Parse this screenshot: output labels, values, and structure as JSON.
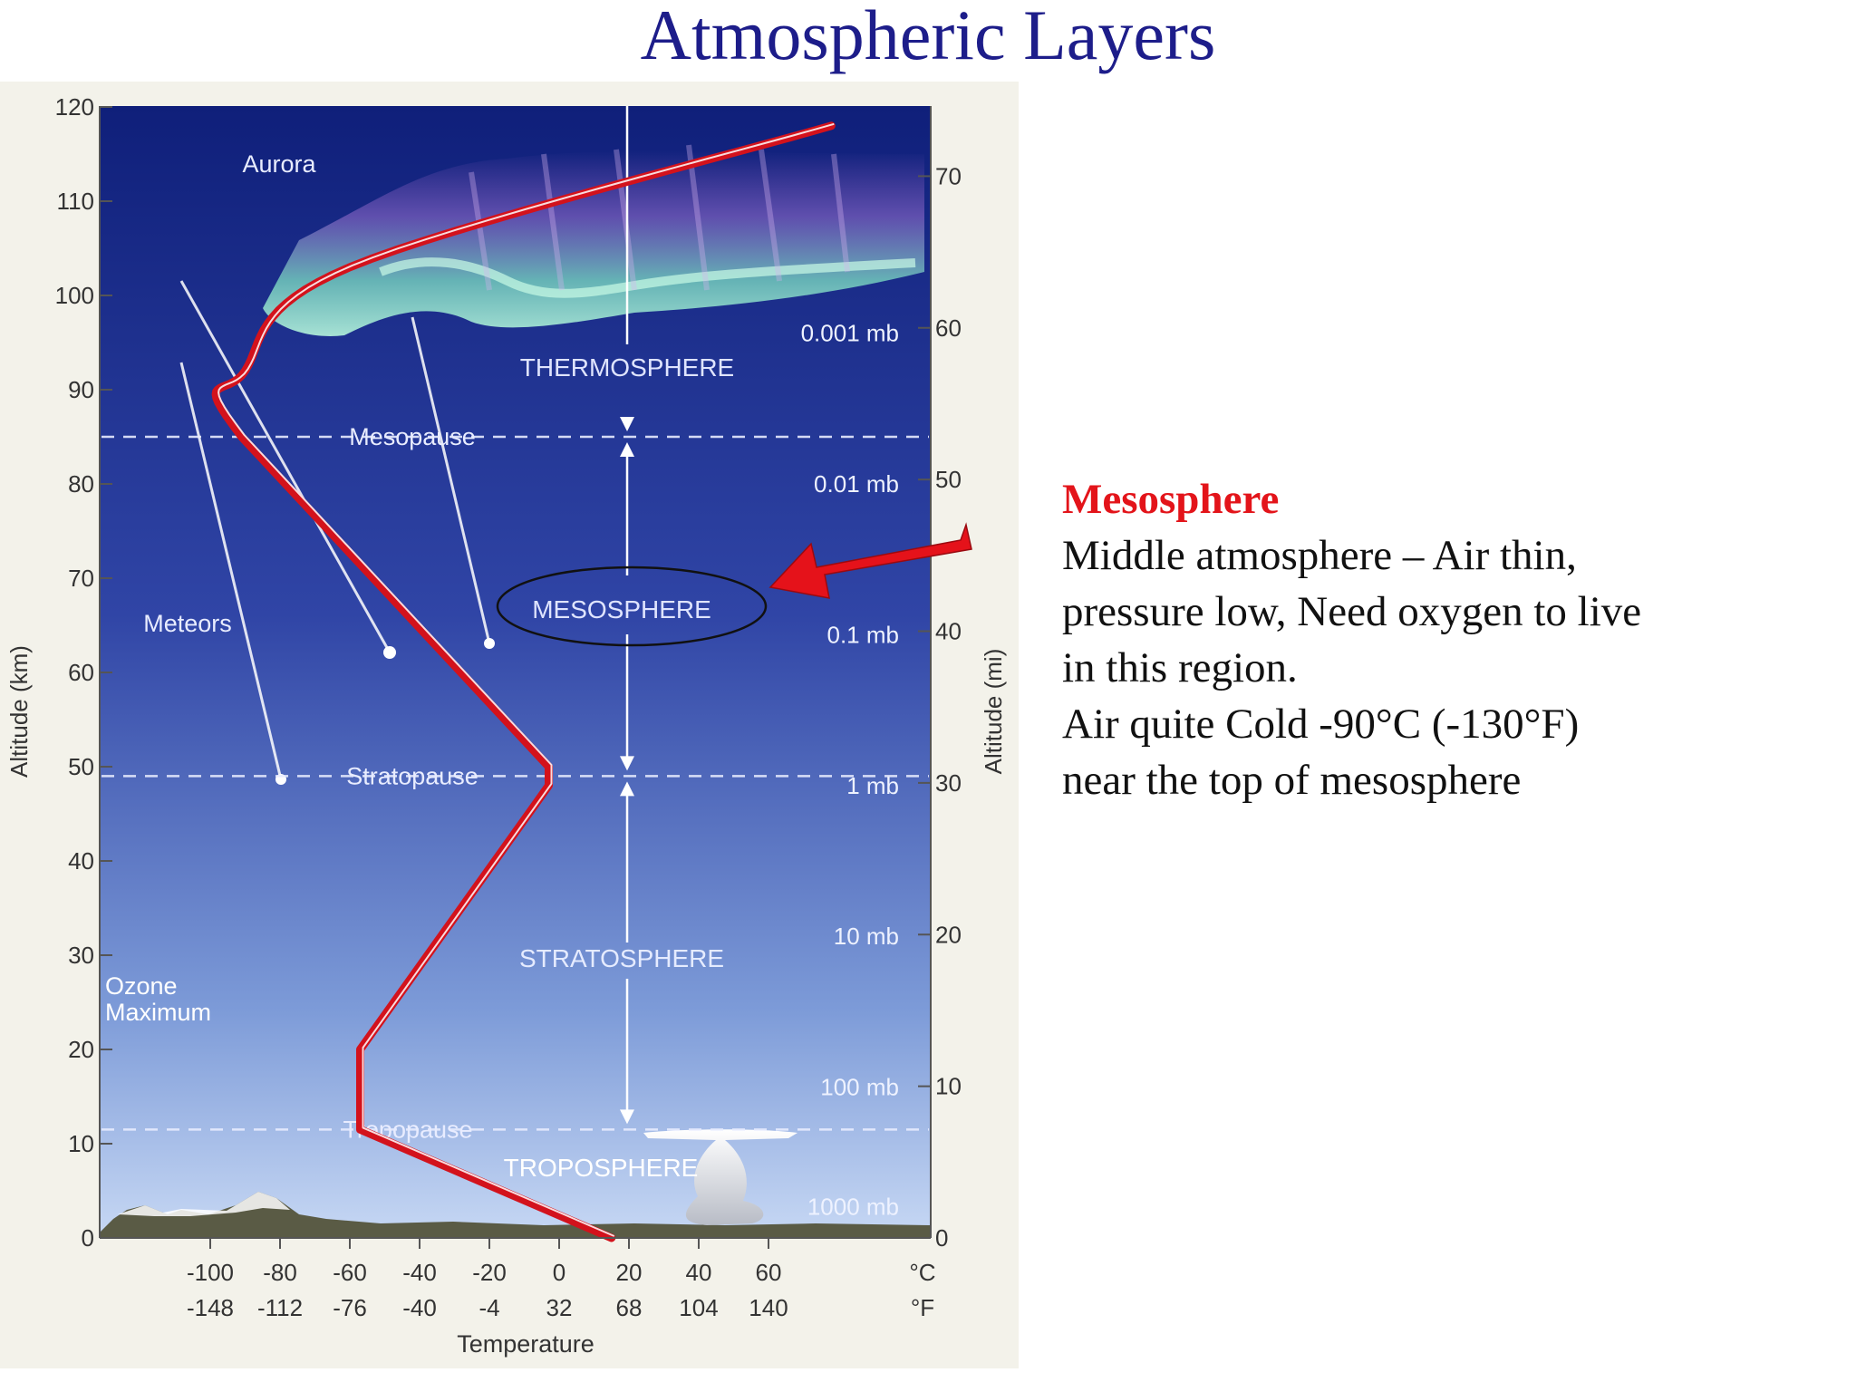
{
  "title": "Atmospheric Layers",
  "colors": {
    "title": "#1d1d8a",
    "temperature_curve": "#d3121c",
    "sky_top": "#0f1f7a",
    "sky_bottom": "#c7d8f4",
    "highlight_arrow": "#e5121a",
    "heading_text": "#e3141a"
  },
  "figure": {
    "y_axis_left": {
      "label": "Altitude (km)",
      "range": [
        0,
        120
      ],
      "ticks": [
        "0",
        "10",
        "20",
        "30",
        "40",
        "50",
        "60",
        "70",
        "80",
        "90",
        "100",
        "110",
        "120"
      ]
    },
    "y_axis_right": {
      "label": "Altitude (mi)",
      "ticks": [
        "0",
        "10",
        "20",
        "30",
        "40",
        "50",
        "60",
        "70"
      ]
    },
    "x_axis": {
      "label": "Temperature",
      "celsius_ticks": [
        "-100",
        "-80",
        "-60",
        "-40",
        "-20",
        "0",
        "20",
        "40",
        "60"
      ],
      "fahrenheit_ticks": [
        "-148",
        "-112",
        "-76",
        "-40",
        "-4",
        "32",
        "68",
        "104",
        "140"
      ],
      "celsius_unit": "°C",
      "fahrenheit_unit": "°F",
      "range_c": [
        -100,
        80
      ]
    },
    "pressure_labels": [
      {
        "text": "1000 mb",
        "km": 3.3
      },
      {
        "text": "100 mb",
        "km": 16
      },
      {
        "text": "10 mb",
        "km": 32
      },
      {
        "text": "1 mb",
        "km": 48
      },
      {
        "text": "0.1 mb",
        "km": 64
      },
      {
        "text": "0.01 mb",
        "km": 80
      },
      {
        "text": "0.001 mb",
        "km": 96
      }
    ],
    "layers": {
      "thermosphere": "THERMOSPHERE",
      "mesosphere": "MESOSPHERE",
      "stratosphere": "STRATOSPHERE",
      "troposphere": "TROPOSPHERE"
    },
    "boundaries": [
      {
        "name": "Mesopause",
        "km": 85
      },
      {
        "name": "Stratopause",
        "km": 49
      },
      {
        "name": "Tropopause",
        "km": 11.5
      }
    ],
    "annotations": {
      "aurora": "Aurora",
      "meteors": "Meteors",
      "ozone_line1": "Ozone",
      "ozone_line2": "Maximum"
    },
    "temperature_profile": [
      {
        "temp_c": 15,
        "km": 0
      },
      {
        "temp_c": -57,
        "km": 11.5
      },
      {
        "temp_c": -57,
        "km": 20
      },
      {
        "temp_c": -3,
        "km": 48
      },
      {
        "temp_c": -3,
        "km": 50
      },
      {
        "temp_c": -91,
        "km": 85
      },
      {
        "temp_c": -90,
        "km": 92
      },
      {
        "temp_c": -60,
        "km": 103
      },
      {
        "temp_c": 78,
        "km": 118
      }
    ]
  },
  "text_panel": {
    "heading": "Mesosphere",
    "lines": [
      "Middle atmosphere – Air thin,",
      "pressure low, Need oxygen to live",
      "in this region.",
      "Air quite Cold  -90°C (-130°F)",
      "near the top of mesosphere"
    ]
  }
}
